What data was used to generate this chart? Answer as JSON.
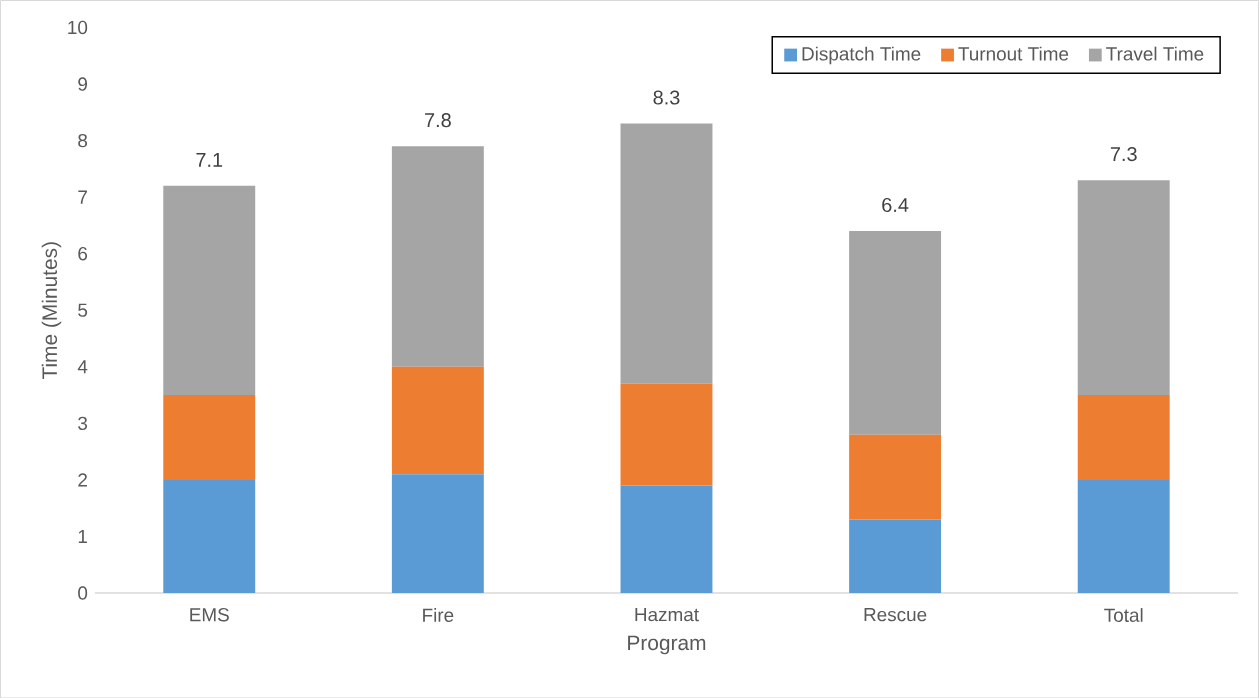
{
  "chart_data": {
    "type": "bar",
    "stacked": true,
    "xlabel": "Program",
    "ylabel": "Time (Minutes)",
    "categories": [
      "EMS",
      "Fire",
      "Hazmat",
      "Rescue",
      "Total"
    ],
    "series": [
      {
        "name": "Dispatch Time",
        "color": "#5b9bd5",
        "values": [
          2.0,
          2.1,
          1.9,
          1.3,
          2.0
        ]
      },
      {
        "name": "Turnout Time",
        "color": "#ed7d31",
        "values": [
          1.5,
          1.9,
          1.8,
          1.5,
          1.5
        ]
      },
      {
        "name": "Travel Time",
        "color": "#a5a5a5",
        "values": [
          3.7,
          3.9,
          4.6,
          3.6,
          3.8
        ]
      }
    ],
    "totals": [
      "7.1",
      "7.8",
      "8.3",
      "6.4",
      "7.3"
    ],
    "ylim": [
      0,
      10
    ],
    "yticks": [
      0,
      1,
      2,
      3,
      4,
      5,
      6,
      7,
      8,
      9,
      10
    ],
    "grid": false,
    "legend": "top right"
  }
}
